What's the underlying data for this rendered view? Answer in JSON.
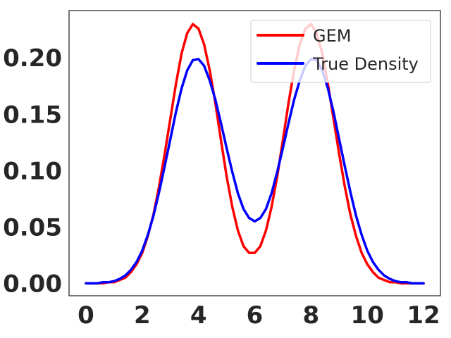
{
  "chart_data": {
    "type": "line",
    "title": "",
    "xlabel": "",
    "ylabel": "",
    "xlim": [
      -0.6,
      12.6
    ],
    "ylim": [
      -0.011,
      0.242
    ],
    "grid": false,
    "legend": "top-right",
    "xticks": [
      0,
      2,
      4,
      6,
      8,
      10,
      12
    ],
    "xtick_labels": [
      "0",
      "2",
      "4",
      "6",
      "8",
      "10",
      "12"
    ],
    "yticks": [
      0.0,
      0.05,
      0.1,
      0.15,
      0.2
    ],
    "ytick_labels": [
      "0.00",
      "0.05",
      "0.10",
      "0.15",
      "0.20"
    ],
    "x": [
      0,
      0.2,
      0.4,
      0.6,
      0.8,
      1.0,
      1.2,
      1.4,
      1.6,
      1.8,
      2.0,
      2.2,
      2.4,
      2.6,
      2.8,
      3.0,
      3.2,
      3.4,
      3.6,
      3.8,
      4.0,
      4.2,
      4.4,
      4.6,
      4.8,
      5.0,
      5.2,
      5.4,
      5.6,
      5.8,
      6.0,
      6.2,
      6.4,
      6.6,
      6.8,
      7.0,
      7.2,
      7.4,
      7.6,
      7.8,
      8.0,
      8.2,
      8.4,
      8.6,
      8.8,
      9.0,
      9.2,
      9.4,
      9.6,
      9.8,
      10.0,
      10.2,
      10.4,
      10.6,
      10.8,
      11.0,
      11.2,
      11.4,
      11.6,
      11.8,
      12.0
    ],
    "series": [
      {
        "name": "GEM",
        "color": "#ff0000",
        "values": [
          0.0,
          0.0,
          0.0,
          0.0,
          0.001,
          0.001,
          0.003,
          0.005,
          0.01,
          0.017,
          0.027,
          0.042,
          0.061,
          0.086,
          0.115,
          0.146,
          0.177,
          0.204,
          0.222,
          0.23,
          0.226,
          0.212,
          0.189,
          0.16,
          0.127,
          0.095,
          0.068,
          0.047,
          0.033,
          0.027,
          0.027,
          0.033,
          0.047,
          0.068,
          0.095,
          0.127,
          0.16,
          0.189,
          0.212,
          0.226,
          0.23,
          0.222,
          0.204,
          0.177,
          0.146,
          0.115,
          0.086,
          0.061,
          0.042,
          0.027,
          0.017,
          0.01,
          0.005,
          0.003,
          0.001,
          0.001,
          0.0,
          0.0,
          0.0,
          0.0,
          0.0
        ]
      },
      {
        "name": "True Density",
        "color": "#0000ff",
        "values": [
          0.0,
          0.0,
          0.0,
          0.001,
          0.001,
          0.002,
          0.004,
          0.007,
          0.012,
          0.019,
          0.029,
          0.043,
          0.06,
          0.081,
          0.104,
          0.128,
          0.152,
          0.173,
          0.189,
          0.198,
          0.199,
          0.193,
          0.18,
          0.163,
          0.142,
          0.12,
          0.099,
          0.08,
          0.066,
          0.058,
          0.055,
          0.058,
          0.066,
          0.08,
          0.099,
          0.12,
          0.142,
          0.163,
          0.18,
          0.193,
          0.199,
          0.198,
          0.189,
          0.173,
          0.152,
          0.128,
          0.104,
          0.081,
          0.06,
          0.043,
          0.029,
          0.019,
          0.012,
          0.007,
          0.004,
          0.002,
          0.001,
          0.001,
          0.0,
          0.0,
          0.0
        ]
      }
    ]
  }
}
